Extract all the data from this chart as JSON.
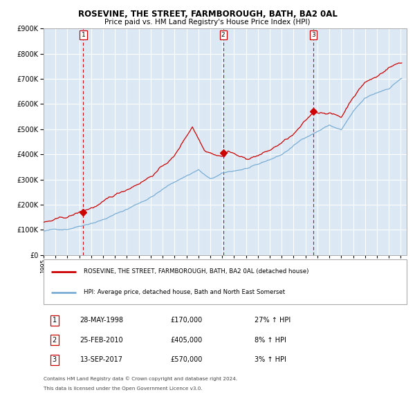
{
  "title": "ROSEVINE, THE STREET, FARMBOROUGH, BATH, BA2 0AL",
  "subtitle": "Price paid vs. HM Land Registry's House Price Index (HPI)",
  "legend_line1": "ROSEVINE, THE STREET, FARMBOROUGH, BATH, BA2 0AL (detached house)",
  "legend_line2": "HPI: Average price, detached house, Bath and North East Somerset",
  "sale1_date": "28-MAY-1998",
  "sale1_price": 170000,
  "sale1_pct": "27% ↑ HPI",
  "sale2_date": "25-FEB-2010",
  "sale2_price": 405000,
  "sale2_pct": "8% ↑ HPI",
  "sale3_date": "13-SEP-2017",
  "sale3_price": 570000,
  "sale3_pct": "3% ↑ HPI",
  "footnote1": "Contains HM Land Registry data © Crown copyright and database right 2024.",
  "footnote2": "This data is licensed under the Open Government Licence v3.0.",
  "bg_plot": "#dce9f5",
  "line_red": "#cc0000",
  "line_blue": "#7aadd4",
  "grid_color": "#ffffff",
  "sale_vline_color": "#cc0000",
  "ylim_max": 900000,
  "xlim_min": 1995.0,
  "xlim_max": 2025.5
}
